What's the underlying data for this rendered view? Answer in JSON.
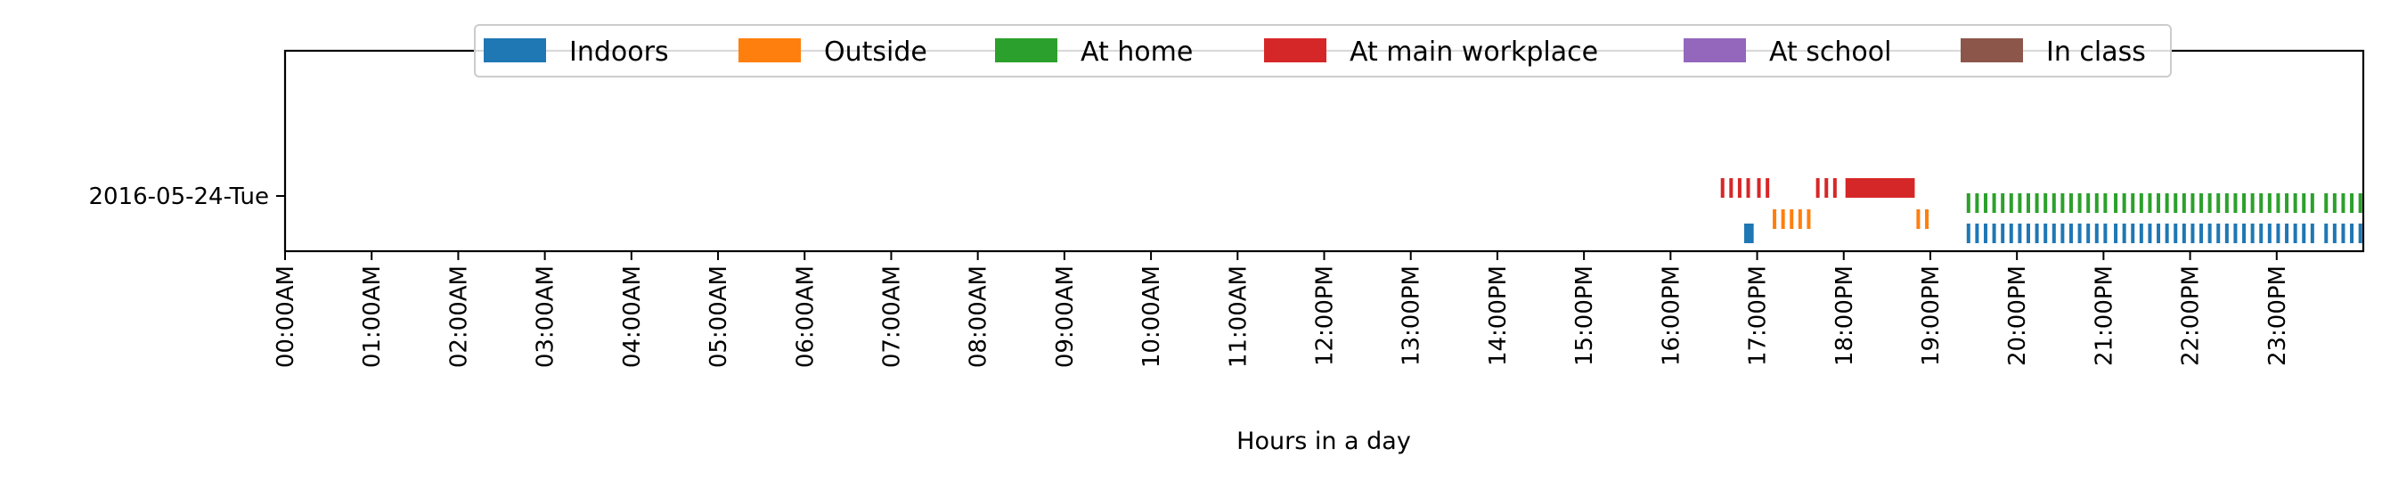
{
  "chart_data": {
    "type": "timeline",
    "xlabel": "Hours in a day",
    "ylabel": "",
    "title": "",
    "x_unit": "hours",
    "xlim": [
      0,
      24
    ],
    "tick_values": [
      0,
      1,
      2,
      3,
      4,
      5,
      6,
      7,
      8,
      9,
      10,
      11,
      12,
      13,
      14,
      15,
      16,
      17,
      18,
      19,
      20,
      21,
      22,
      23
    ],
    "tick_labels": [
      "00:00AM",
      "01:00AM",
      "02:00AM",
      "03:00AM",
      "04:00AM",
      "05:00AM",
      "06:00AM",
      "07:00AM",
      "08:00AM",
      "09:00AM",
      "10:00AM",
      "11:00AM",
      "12:00PM",
      "13:00PM",
      "14:00PM",
      "15:00PM",
      "16:00PM",
      "17:00PM",
      "18:00PM",
      "19:00PM",
      "20:00PM",
      "21:00PM",
      "22:00PM",
      "23:00PM"
    ],
    "categories": [
      "2016-05-24-Tue"
    ],
    "legend_position": "top-center",
    "grid": false,
    "series": [
      {
        "name": "Indoors",
        "color": "#1f77b4",
        "intervals": [
          [
            16.85,
            16.96
          ],
          [
            19.42,
            21.05
          ],
          [
            21.12,
            23.5
          ],
          [
            23.55,
            24.0
          ]
        ]
      },
      {
        "name": "Outside",
        "color": "#ff7f0e",
        "intervals": [
          [
            17.18,
            17.66
          ],
          [
            18.84,
            19.06
          ]
        ]
      },
      {
        "name": "At home",
        "color": "#2ca02c",
        "intervals": [
          [
            19.42,
            21.05
          ],
          [
            21.12,
            23.5
          ],
          [
            23.55,
            24.0
          ]
        ]
      },
      {
        "name": "At main workplace",
        "color": "#d62728",
        "intervals": [
          [
            16.58,
            16.92
          ],
          [
            17.0,
            17.16
          ],
          [
            17.68,
            17.98
          ],
          [
            18.02,
            18.82
          ]
        ]
      },
      {
        "name": "At school",
        "color": "#9467bd",
        "intervals": []
      },
      {
        "name": "In class",
        "color": "#8c564b",
        "intervals": []
      }
    ]
  }
}
